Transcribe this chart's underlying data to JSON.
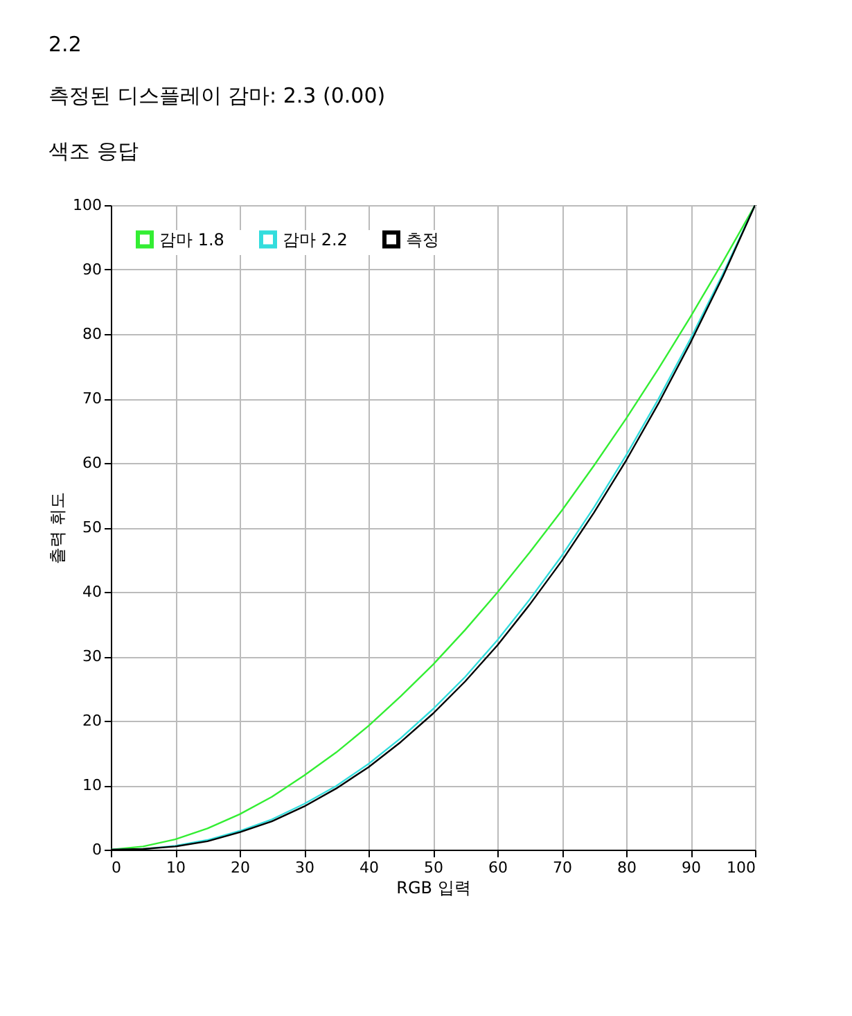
{
  "chart_data": {
    "type": "line",
    "title": "2.2",
    "subtitle": "측정된 디스플레이 감마: 2.3 (0.00)",
    "annotations": [
      "색조 응답"
    ],
    "xlabel": "RGB 입력",
    "ylabel": "출력 휘도",
    "x": [
      0,
      5,
      10,
      15,
      20,
      25,
      30,
      35,
      40,
      45,
      50,
      55,
      60,
      65,
      70,
      75,
      80,
      85,
      90,
      95,
      100
    ],
    "series": [
      {
        "name": "감마 1.8",
        "color": "#33ee33",
        "values": [
          0,
          0.5,
          1.6,
          3.3,
          5.5,
          8.2,
          11.5,
          15.1,
          19.2,
          23.8,
          28.7,
          34.1,
          39.9,
          46.1,
          52.6,
          59.6,
          66.9,
          74.6,
          82.7,
          91.2,
          100
        ]
      },
      {
        "name": "감마 2.2",
        "color": "#33dddd",
        "values": [
          0,
          0.1,
          0.6,
          1.5,
          2.9,
          4.7,
          7.1,
          9.9,
          13.3,
          17.3,
          21.8,
          26.8,
          32.5,
          38.8,
          45.6,
          53.1,
          61.2,
          69.9,
          79.3,
          89.3,
          100
        ]
      },
      {
        "name": "측정",
        "color": "#000000",
        "values": [
          0,
          0.1,
          0.5,
          1.3,
          2.7,
          4.4,
          6.7,
          9.5,
          12.8,
          16.7,
          21.1,
          26.1,
          31.7,
          38.0,
          44.8,
          52.3,
          60.4,
          69.2,
          78.7,
          88.9,
          100
        ]
      }
    ],
    "xlim": [
      0,
      100
    ],
    "ylim": [
      0,
      100
    ],
    "xticks": [
      0,
      10,
      20,
      30,
      40,
      50,
      60,
      70,
      80,
      90,
      100
    ],
    "yticks": [
      0,
      10,
      20,
      30,
      40,
      50,
      60,
      70,
      80,
      90,
      100
    ],
    "grid": true,
    "legend": "top left",
    "marker": "none",
    "line_style": "solid"
  }
}
